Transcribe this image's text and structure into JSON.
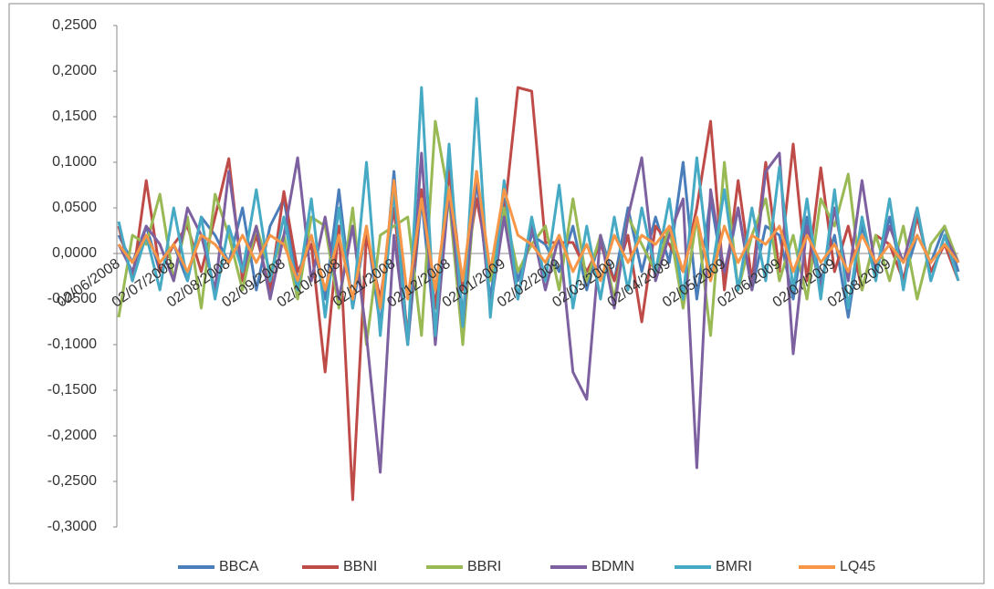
{
  "chart_data": {
    "type": "line",
    "categories": [
      "02/06/2008",
      null,
      null,
      null,
      "02/07/2008",
      null,
      null,
      null,
      "02/08/2008",
      null,
      null,
      null,
      "02/09/2008",
      null,
      null,
      null,
      "02/10/2008",
      null,
      null,
      null,
      "02/11/2008",
      null,
      null,
      null,
      "02/12/2008",
      null,
      null,
      null,
      "02/01/2009",
      null,
      null,
      null,
      "02/02/2009",
      null,
      null,
      null,
      "02/03/2009",
      null,
      null,
      null,
      "02/04/2009",
      null,
      null,
      null,
      "02/05/2009",
      null,
      null,
      null,
      "02/06/2009",
      null,
      null,
      null,
      "02/07/2009",
      null,
      null,
      null,
      "02/08/2009",
      null,
      null,
      null,
      null,
      null
    ],
    "series": [
      {
        "name": "BBCA",
        "color": "#4a7ebb",
        "values": [
          0.02,
          -0.01,
          0.03,
          -0.02,
          0.01,
          -0.03,
          0.04,
          0.02,
          -0.01,
          0.05,
          -0.04,
          0.03,
          0.06,
          -0.03,
          0.02,
          -0.05,
          0.07,
          -0.06,
          0.03,
          -0.08,
          0.09,
          -0.1,
          0.06,
          -0.09,
          0.1,
          -0.07,
          0.08,
          -0.05,
          0.06,
          -0.03,
          0.02,
          0.01,
          -0.02,
          0.03,
          -0.04,
          0.02,
          -0.03,
          0.05,
          -0.02,
          0.04,
          -0.01,
          0.1,
          -0.05,
          0.06,
          -0.03,
          0.05,
          -0.04,
          0.03,
          0.02,
          -0.05,
          0.04,
          -0.03,
          0.02,
          -0.07,
          0.03,
          -0.02,
          0.04,
          -0.03,
          0.02,
          -0.01,
          0.03,
          -0.02
        ]
      },
      {
        "name": "BBNI",
        "color": "#be4b48",
        "values": [
          0.03,
          -0.03,
          0.08,
          -0.02,
          0.01,
          0.03,
          -0.02,
          0.04,
          0.104,
          -0.03,
          0.02,
          -0.04,
          0.068,
          -0.02,
          0.01,
          -0.13,
          0.03,
          -0.27,
          0.02,
          -0.05,
          0.05,
          -0.09,
          0.07,
          -0.06,
          0.09,
          -0.04,
          0.06,
          -0.02,
          0.04,
          0.182,
          0.178,
          0.012,
          0.012,
          0.012,
          -0.02,
          0.01,
          -0.03,
          0.02,
          -0.075,
          0.03,
          0.01,
          -0.02,
          0.05,
          0.145,
          -0.04,
          0.08,
          -0.03,
          0.1,
          -0.02,
          0.12,
          -0.03,
          0.094,
          -0.02,
          0.03,
          -0.04,
          0.02,
          0.01,
          -0.03,
          0.04,
          -0.02,
          0.01,
          -0.03
        ]
      },
      {
        "name": "BBRI",
        "color": "#98b954",
        "values": [
          -0.07,
          0.02,
          0.01,
          0.065,
          -0.03,
          0.04,
          -0.06,
          0.065,
          0.02,
          -0.04,
          0.03,
          -0.02,
          0.02,
          -0.05,
          0.04,
          0.03,
          -0.06,
          0.05,
          -0.1,
          0.02,
          0.03,
          0.04,
          -0.09,
          0.145,
          0.06,
          -0.1,
          0.09,
          -0.03,
          0.05,
          -0.02,
          0.01,
          0.03,
          -0.04,
          0.06,
          -0.03,
          0.02,
          -0.05,
          0.04,
          0.01,
          -0.02,
          0.03,
          -0.06,
          0.04,
          -0.09,
          0.1,
          -0.04,
          0.02,
          0.06,
          -0.03,
          0.02,
          -0.05,
          0.06,
          0.03,
          0.087,
          -0.04,
          0.02,
          -0.03,
          0.03,
          -0.05,
          0.01,
          0.03,
          -0.01
        ]
      },
      {
        "name": "BDMN",
        "color": "#7d60a0",
        "values": [
          0.01,
          -0.02,
          0.03,
          0.01,
          -0.03,
          0.05,
          0.02,
          -0.04,
          0.09,
          -0.02,
          0.03,
          -0.05,
          0.02,
          0.105,
          -0.03,
          0.04,
          -0.05,
          0.03,
          -0.09,
          -0.24,
          0.02,
          -0.1,
          0.11,
          -0.1,
          0.07,
          -0.08,
          0.09,
          -0.06,
          0.04,
          -0.05,
          0.03,
          -0.04,
          0.02,
          -0.13,
          -0.16,
          0.02,
          -0.06,
          0.04,
          0.105,
          -0.03,
          0.02,
          0.06,
          -0.235,
          0.07,
          -0.02,
          0.05,
          -0.04,
          0.09,
          0.11,
          -0.11,
          0.03,
          -0.04,
          0.05,
          -0.03,
          0.08,
          -0.02,
          0.03,
          -0.01,
          0.05,
          -0.03,
          0.02,
          -0.01
        ]
      },
      {
        "name": "BMRI",
        "color": "#46aac5",
        "values": [
          0.035,
          -0.03,
          0.02,
          -0.04,
          0.05,
          -0.03,
          0.04,
          -0.05,
          0.03,
          -0.02,
          0.07,
          -0.03,
          0.04,
          -0.04,
          0.06,
          -0.07,
          0.05,
          -0.06,
          0.1,
          -0.09,
          0.07,
          -0.1,
          0.182,
          -0.09,
          0.12,
          -0.08,
          0.17,
          -0.07,
          0.08,
          -0.05,
          0.04,
          -0.03,
          0.075,
          -0.06,
          0.03,
          -0.05,
          0.04,
          -0.04,
          0.05,
          -0.02,
          0.06,
          -0.05,
          0.105,
          -0.03,
          0.07,
          -0.04,
          0.05,
          -0.03,
          0.095,
          -0.04,
          0.06,
          -0.05,
          0.07,
          -0.06,
          0.04,
          -0.03,
          0.06,
          -0.04,
          0.05,
          -0.03,
          0.02,
          -0.03
        ]
      },
      {
        "name": "LQ45",
        "color": "#f79646",
        "values": [
          0.01,
          -0.01,
          0.02,
          -0.01,
          0.01,
          -0.02,
          0.02,
          0.01,
          -0.01,
          0.02,
          -0.01,
          0.02,
          0.01,
          -0.03,
          0.02,
          -0.04,
          0.02,
          -0.05,
          0.03,
          -0.06,
          0.08,
          -0.05,
          0.06,
          -0.04,
          0.07,
          -0.03,
          0.09,
          -0.02,
          0.07,
          0.02,
          0.01,
          -0.01,
          0.02,
          -0.02,
          0.01,
          -0.03,
          0.02,
          -0.01,
          0.02,
          0.01,
          0.03,
          -0.02,
          0.04,
          -0.03,
          0.03,
          -0.01,
          0.02,
          0.01,
          0.03,
          -0.02,
          0.02,
          -0.01,
          0.01,
          -0.02,
          0.02,
          -0.01,
          0.01,
          -0.01,
          0.02,
          -0.01,
          0.01,
          -0.01
        ]
      }
    ],
    "ylim": [
      -0.3,
      0.25
    ],
    "yticks": [
      {
        "value": 0.25,
        "label": "0,2500"
      },
      {
        "value": 0.2,
        "label": "0,2000"
      },
      {
        "value": 0.15,
        "label": "0,1500"
      },
      {
        "value": 0.1,
        "label": "0,1000"
      },
      {
        "value": 0.05,
        "label": "0,0500"
      },
      {
        "value": 0,
        "label": "0,0000"
      },
      {
        "value": -0.05,
        "label": "-0,0500"
      },
      {
        "value": -0.1,
        "label": "-0,1000"
      },
      {
        "value": -0.15,
        "label": "-0,1500"
      },
      {
        "value": -0.2,
        "label": "-0,2000"
      },
      {
        "value": -0.25,
        "label": "-0,2500"
      },
      {
        "value": -0.3,
        "label": "-0,3000"
      }
    ],
    "grid": false,
    "legend": "bottom"
  }
}
